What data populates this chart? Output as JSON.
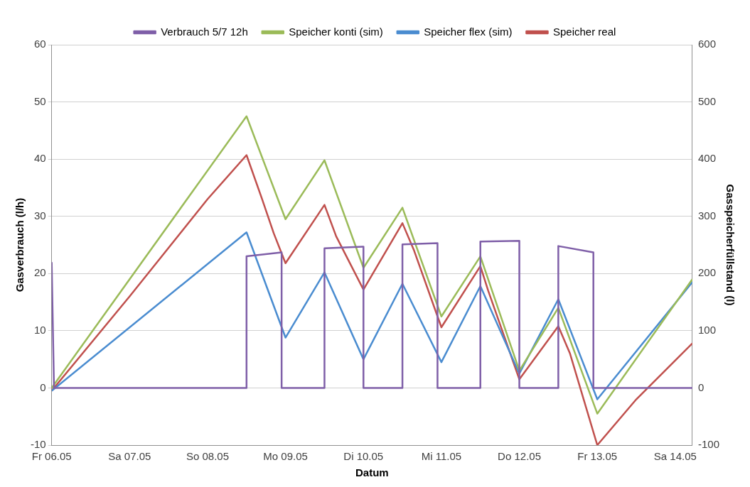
{
  "chart_data": {
    "type": "line",
    "xlabel": "Datum",
    "ylabel": "Gasverbrauch (l/h)",
    "y2label": "Gasspeicherfüllstand (l)",
    "xlim": [
      "--05-06",
      "--05-14T05:17"
    ],
    "xticks": [
      {
        "value": "--05-06",
        "label": "Fr 06.05"
      },
      {
        "value": "--05-07",
        "label": "Sa 07.05"
      },
      {
        "value": "--05-08",
        "label": "So 08.05"
      },
      {
        "value": "--05-09",
        "label": "Mo 09.05"
      },
      {
        "value": "--05-10",
        "label": "Di 10.05"
      },
      {
        "value": "--05-11",
        "label": "Mi 11.05"
      },
      {
        "value": "--05-12",
        "label": "Do 12.05"
      },
      {
        "value": "--05-13",
        "label": "Fr 13.05"
      },
      {
        "value": "--05-14",
        "label": "Sa 14.05"
      }
    ],
    "ylim": [
      -10,
      60
    ],
    "yticks": [
      -10,
      0,
      10,
      20,
      30,
      40,
      50,
      60
    ],
    "y2lim": [
      -100,
      600
    ],
    "y2ticks": [
      -100,
      0,
      100,
      200,
      300,
      400,
      500,
      600
    ],
    "grid": "y",
    "legend": "top",
    "marker": "none",
    "line_style": "solid",
    "series": [
      {
        "name": "Verbrauch 5/7 12h",
        "color": "#7f5fa8",
        "x": [
          "--05-06",
          "--05-06T00:43",
          "--05-08T12:00",
          "--05-08T12:00",
          "--05-08T22:48",
          "--05-08T22:48",
          "--05-09T12:00",
          "--05-09T12:00",
          "--05-10",
          "--05-10",
          "--05-10T12:00",
          "--05-10T12:00",
          "--05-10T22:48",
          "--05-10T22:48",
          "--05-11T12:00",
          "--05-11T12:00",
          "--05-12",
          "--05-12",
          "--05-12T12:00",
          "--05-12T12:00",
          "--05-12T22:48",
          "--05-12T22:48",
          "--05-14T05:17"
        ],
        "values": [
          22,
          0,
          0,
          23,
          23.7,
          0,
          0,
          24.4,
          24.7,
          0,
          0,
          25.1,
          25.3,
          0,
          0,
          25.6,
          25.7,
          0,
          0,
          24.8,
          23.7,
          0,
          0
        ]
      },
      {
        "name": "Speicher konti (sim)",
        "color": "#9bbb59",
        "axis": "y2",
        "x": [
          "--05-06",
          "--05-08T12:00",
          "--05-09",
          "--05-09T12:00",
          "--05-10",
          "--05-10T12:00",
          "--05-11",
          "--05-11T12:00",
          "--05-12",
          "--05-12T12:00",
          "--05-13",
          "--05-14T05:17"
        ],
        "values": [
          0,
          475,
          295,
          398,
          210,
          315,
          125,
          230,
          30,
          140,
          -45,
          190
        ]
      },
      {
        "name": "Speicher flex (sim)",
        "color": "#4a8cd0",
        "axis": "y2",
        "x": [
          "--05-06",
          "--05-08T12:00",
          "--05-09",
          "--05-09T12:00",
          "--05-10",
          "--05-10T12:00",
          "--05-11",
          "--05-11T12:00",
          "--05-12",
          "--05-12T12:00",
          "--05-13",
          "--05-14T05:17"
        ],
        "values": [
          -5,
          272,
          88,
          202,
          50,
          182,
          45,
          178,
          25,
          155,
          -20,
          185
        ]
      },
      {
        "name": "Speicher real",
        "color": "#c0504d",
        "axis": "y2",
        "x": [
          "--05-06",
          "--05-07",
          "--05-08",
          "--05-08T12:00",
          "--05-08T16:48",
          "--05-08T20:24",
          "--05-09",
          "--05-09T12:00",
          "--05-09T15:36",
          "--05-10",
          "--05-10T12:00",
          "--05-10T15:36",
          "--05-11",
          "--05-11T12:00",
          "--05-11T14:24",
          "--05-12",
          "--05-12T12:00",
          "--05-12T15:36",
          "--05-13",
          "--05-13T12:00",
          "--05-14T05:17"
        ],
        "values": [
          -5,
          160,
          330,
          407,
          330,
          270,
          218,
          320,
          265,
          172,
          288,
          240,
          106,
          213,
          170,
          15,
          108,
          60,
          -100,
          -20,
          78
        ]
      }
    ]
  }
}
